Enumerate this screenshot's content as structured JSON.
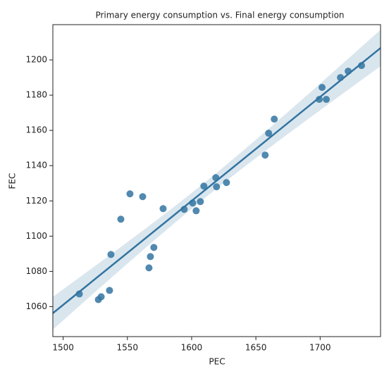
{
  "chart_data": {
    "type": "scatter",
    "title": "Primary energy consumption vs. Final energy consumption",
    "x_label": "PEC",
    "y_label": "FEC",
    "color": "#3274a1",
    "regression": true,
    "series": [
      {
        "x": [
          1512.6,
          1527.4,
          1529.6,
          1536.1,
          1537.2,
          1544.9,
          1552.0,
          1561.9,
          1566.8,
          1567.9,
          1570.6,
          1577.8,
          1594.2,
          1600.8,
          1603.5,
          1606.8,
          1609.5,
          1618.8,
          1619.4,
          1627.1,
          1657.2,
          1659.9,
          1664.3,
          1699.3,
          1701.5,
          1704.8,
          1715.8,
          1721.8,
          1732.2
        ],
        "values": [
          1067.2,
          1064.0,
          1065.6,
          1069.2,
          1089.6,
          1109.6,
          1124.0,
          1122.4,
          1082.0,
          1088.4,
          1093.6,
          1115.6,
          1115.2,
          1118.8,
          1114.4,
          1119.6,
          1128.4,
          1133.2,
          1128.0,
          1130.4,
          1146.0,
          1158.4,
          1166.4,
          1177.6,
          1184.4,
          1177.6,
          1190.0,
          1193.6,
          1196.8
        ]
      }
    ],
    "xlim": [
      1492,
      1747
    ],
    "xticks": [
      1500,
      1550,
      1600,
      1650,
      1700
    ],
    "ylim": [
      1043,
      1220
    ],
    "yticks": [
      1060,
      1080,
      1100,
      1120,
      1140,
      1160,
      1180,
      1200
    ]
  }
}
